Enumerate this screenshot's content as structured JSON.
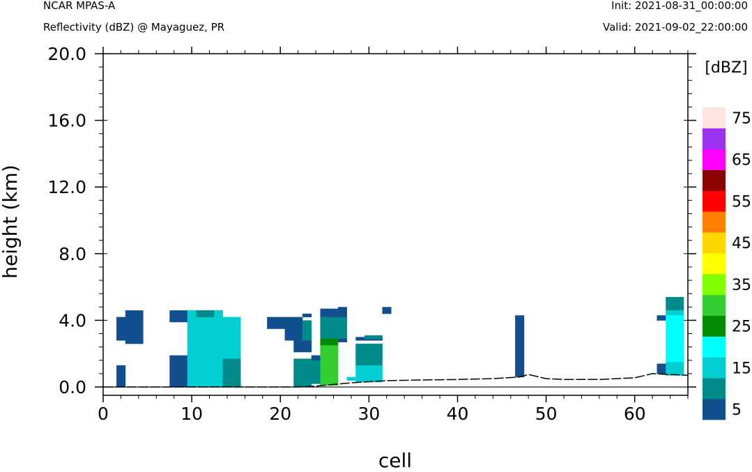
{
  "header": {
    "model": "NCAR MPAS-A",
    "field": "Reflectivity (dBZ) @ Mayaguez, PR",
    "init": "Init: 2021-08-31_00:00:00",
    "valid": "Valid: 2021-09-02_22:00:00"
  },
  "chart_data": {
    "type": "heatmap",
    "xlabel": "cell",
    "ylabel": "height (km)",
    "xlim": [
      0,
      66
    ],
    "ylim": [
      -0.5,
      20.0
    ],
    "x_ticks": [
      "0",
      "10",
      "20",
      "30",
      "40",
      "50",
      "60"
    ],
    "y_ticks": [
      "0.0",
      "4.0",
      "8.0",
      "12.0",
      "16.0",
      "20.0"
    ],
    "colorbar": {
      "units": "[dBZ]",
      "levels": [
        "5",
        "15",
        "25",
        "35",
        "45",
        "55",
        "65",
        "75"
      ],
      "colors": [
        "#124f8e",
        "#008b8b",
        "#00ced1",
        "#00ffff",
        "#008b00",
        "#32cd32",
        "#7fff00",
        "#ffff00",
        "#ffd700",
        "#ff7f00",
        "#ff0000",
        "#8b0000",
        "#ff00ff",
        "#9a32f0",
        "#ffe4e1"
      ]
    },
    "cells": [
      {
        "x": [
          1.5,
          2.5
        ],
        "y": [
          0.0,
          1.3
        ],
        "c": 0
      },
      {
        "x": [
          1.5,
          2.5
        ],
        "y": [
          2.8,
          4.2
        ],
        "c": 0
      },
      {
        "x": [
          2.5,
          4.5
        ],
        "y": [
          2.6,
          4.6
        ],
        "c": 0
      },
      {
        "x": [
          7.5,
          9.5
        ],
        "y": [
          0.0,
          1.9
        ],
        "c": 0
      },
      {
        "x": [
          7.5,
          9.5
        ],
        "y": [
          3.9,
          4.6
        ],
        "c": 0
      },
      {
        "x": [
          9.5,
          15.5
        ],
        "y": [
          0.0,
          4.2
        ],
        "c": 2
      },
      {
        "x": [
          9.5,
          13.5
        ],
        "y": [
          4.2,
          4.6
        ],
        "c": 2
      },
      {
        "x": [
          10.5,
          12.5
        ],
        "y": [
          4.2,
          4.6
        ],
        "c": 1
      },
      {
        "x": [
          13.5,
          15.5
        ],
        "y": [
          0.0,
          1.7
        ],
        "c": 1
      },
      {
        "x": [
          18.5,
          20.5
        ],
        "y": [
          3.5,
          4.2
        ],
        "c": 0
      },
      {
        "x": [
          20.5,
          22.5
        ],
        "y": [
          3.0,
          4.2
        ],
        "c": 0
      },
      {
        "x": [
          20.5,
          21.5
        ],
        "y": [
          2.8,
          3.0
        ],
        "c": 0
      },
      {
        "x": [
          22.5,
          23.5
        ],
        "y": [
          4.2,
          4.4
        ],
        "c": 0
      },
      {
        "x": [
          21.5,
          23.5
        ],
        "y": [
          2.1,
          3.5
        ],
        "c": 0
      },
      {
        "x": [
          22.5,
          23.5
        ],
        "y": [
          2.8,
          4.0
        ],
        "c": 1
      },
      {
        "x": [
          21.5,
          23.5
        ],
        "y": [
          0.0,
          1.7
        ],
        "c": 1
      },
      {
        "x": [
          23.5,
          24.5
        ],
        "y": [
          1.6,
          1.9
        ],
        "c": 0
      },
      {
        "x": [
          23.5,
          24.5
        ],
        "y": [
          0.2,
          1.6
        ],
        "c": 1
      },
      {
        "x": [
          24.5,
          25.5
        ],
        "y": [
          4.2,
          4.7
        ],
        "c": 0
      },
      {
        "x": [
          24.5,
          27.5
        ],
        "y": [
          2.9,
          4.2
        ],
        "c": 1
      },
      {
        "x": [
          25.5,
          26.5
        ],
        "y": [
          4.2,
          4.7
        ],
        "c": 0
      },
      {
        "x": [
          26.5,
          27.5
        ],
        "y": [
          4.2,
          4.8
        ],
        "c": 0
      },
      {
        "x": [
          26.5,
          27.5
        ],
        "y": [
          2.7,
          2.9
        ],
        "c": 0
      },
      {
        "x": [
          24.5,
          26.5
        ],
        "y": [
          2.3,
          2.9
        ],
        "c": 4
      },
      {
        "x": [
          24.5,
          26.5
        ],
        "y": [
          0.1,
          2.5
        ],
        "c": 5
      },
      {
        "x": [
          27.5,
          28.5
        ],
        "y": [
          0.4,
          0.6
        ],
        "c": 2
      },
      {
        "x": [
          28.5,
          31.5
        ],
        "y": [
          2.8,
          3.0
        ],
        "c": 0
      },
      {
        "x": [
          29.5,
          31.5
        ],
        "y": [
          2.9,
          3.1
        ],
        "c": 1
      },
      {
        "x": [
          28.5,
          31.5
        ],
        "y": [
          1.3,
          2.6
        ],
        "c": 1
      },
      {
        "x": [
          28.5,
          31.5
        ],
        "y": [
          0.3,
          1.3
        ],
        "c": 2
      },
      {
        "x": [
          31.5,
          32.5
        ],
        "y": [
          4.4,
          4.8
        ],
        "c": 0
      },
      {
        "x": [
          46.5,
          47.5
        ],
        "y": [
          0.6,
          4.3
        ],
        "c": 0
      },
      {
        "x": [
          62.5,
          63.5
        ],
        "y": [
          4.0,
          4.3
        ],
        "c": 0
      },
      {
        "x": [
          62.5,
          63.5
        ],
        "y": [
          0.8,
          1.4
        ],
        "c": 0
      },
      {
        "x": [
          63.5,
          65.5
        ],
        "y": [
          4.6,
          5.4
        ],
        "c": 1
      },
      {
        "x": [
          63.5,
          65.5
        ],
        "y": [
          4.3,
          4.6
        ],
        "c": 2
      },
      {
        "x": [
          63.5,
          65.5
        ],
        "y": [
          1.5,
          4.3
        ],
        "c": 3
      },
      {
        "x": [
          63.5,
          65.5
        ],
        "y": [
          0.7,
          1.5
        ],
        "c": 2
      }
    ],
    "terrain": [
      [
        0,
        0.0
      ],
      [
        22,
        0.0
      ],
      [
        24,
        0.05
      ],
      [
        28,
        0.25
      ],
      [
        32,
        0.38
      ],
      [
        36,
        0.42
      ],
      [
        40,
        0.45
      ],
      [
        44,
        0.5
      ],
      [
        47,
        0.6
      ],
      [
        48,
        0.75
      ],
      [
        50,
        0.5
      ],
      [
        52,
        0.45
      ],
      [
        56,
        0.45
      ],
      [
        60,
        0.55
      ],
      [
        62,
        0.8
      ],
      [
        64,
        0.75
      ],
      [
        66,
        0.7
      ]
    ]
  }
}
